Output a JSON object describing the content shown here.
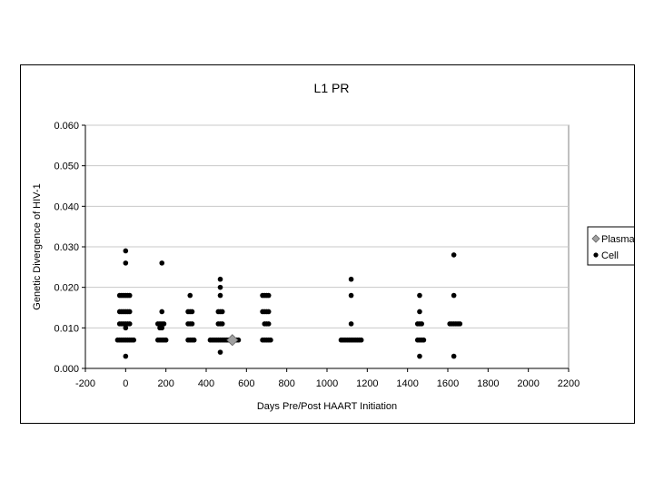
{
  "chart_data": {
    "type": "scatter",
    "title": "L1  PR",
    "xlabel": "Days   Pre/Post   HAART   Initiation",
    "ylabel": "Genetic   Divergence   of   HIV-1",
    "xlim": [
      -200,
      2200
    ],
    "ylim": [
      0.0,
      0.06
    ],
    "x_ticks": [
      -200,
      0,
      200,
      400,
      600,
      800,
      1000,
      1200,
      1400,
      1600,
      1800,
      2000,
      2200
    ],
    "y_ticks": [
      0.0,
      0.01,
      0.02,
      0.03,
      0.04,
      0.05,
      0.06
    ],
    "y_tick_labels": [
      "0.000",
      "0.010",
      "0.020",
      "0.030",
      "0.040",
      "0.050",
      "0.060"
    ],
    "grid": "horizontal",
    "legend_position": "right",
    "series": [
      {
        "name": "Plasma",
        "marker": "diamond",
        "color": "#a0a0a0",
        "points": [
          [
            530,
            0.007
          ]
        ]
      },
      {
        "name": "Cell",
        "marker": "circle",
        "color": "#000000",
        "points": [
          [
            -40,
            0.007
          ],
          [
            -30,
            0.007
          ],
          [
            -20,
            0.007
          ],
          [
            -10,
            0.007
          ],
          [
            0,
            0.007
          ],
          [
            10,
            0.007
          ],
          [
            20,
            0.007
          ],
          [
            30,
            0.007
          ],
          [
            40,
            0.007
          ],
          [
            -30,
            0.011
          ],
          [
            -20,
            0.011
          ],
          [
            -10,
            0.011
          ],
          [
            0,
            0.011
          ],
          [
            10,
            0.011
          ],
          [
            20,
            0.011
          ],
          [
            -30,
            0.014
          ],
          [
            -20,
            0.014
          ],
          [
            -10,
            0.014
          ],
          [
            0,
            0.014
          ],
          [
            10,
            0.014
          ],
          [
            20,
            0.014
          ],
          [
            -30,
            0.018
          ],
          [
            -20,
            0.018
          ],
          [
            -10,
            0.018
          ],
          [
            0,
            0.018
          ],
          [
            10,
            0.018
          ],
          [
            20,
            0.018
          ],
          [
            0,
            0.01
          ],
          [
            0,
            0.026
          ],
          [
            0,
            0.029
          ],
          [
            0,
            0.003
          ],
          [
            160,
            0.007
          ],
          [
            170,
            0.007
          ],
          [
            180,
            0.007
          ],
          [
            190,
            0.007
          ],
          [
            200,
            0.007
          ],
          [
            160,
            0.011
          ],
          [
            170,
            0.011
          ],
          [
            180,
            0.011
          ],
          [
            190,
            0.011
          ],
          [
            170,
            0.01
          ],
          [
            180,
            0.01
          ],
          [
            180,
            0.014
          ],
          [
            180,
            0.026
          ],
          [
            310,
            0.007
          ],
          [
            320,
            0.007
          ],
          [
            330,
            0.007
          ],
          [
            340,
            0.007
          ],
          [
            310,
            0.011
          ],
          [
            320,
            0.011
          ],
          [
            330,
            0.011
          ],
          [
            310,
            0.014
          ],
          [
            320,
            0.014
          ],
          [
            330,
            0.014
          ],
          [
            320,
            0.018
          ],
          [
            420,
            0.007
          ],
          [
            430,
            0.007
          ],
          [
            440,
            0.007
          ],
          [
            450,
            0.007
          ],
          [
            460,
            0.007
          ],
          [
            470,
            0.007
          ],
          [
            480,
            0.007
          ],
          [
            490,
            0.007
          ],
          [
            500,
            0.007
          ],
          [
            510,
            0.007
          ],
          [
            520,
            0.007
          ],
          [
            540,
            0.007
          ],
          [
            550,
            0.007
          ],
          [
            560,
            0.007
          ],
          [
            460,
            0.011
          ],
          [
            470,
            0.011
          ],
          [
            480,
            0.011
          ],
          [
            460,
            0.014
          ],
          [
            470,
            0.014
          ],
          [
            480,
            0.014
          ],
          [
            470,
            0.018
          ],
          [
            470,
            0.02
          ],
          [
            470,
            0.022
          ],
          [
            470,
            0.004
          ],
          [
            680,
            0.007
          ],
          [
            690,
            0.007
          ],
          [
            700,
            0.007
          ],
          [
            710,
            0.007
          ],
          [
            720,
            0.007
          ],
          [
            690,
            0.011
          ],
          [
            700,
            0.011
          ],
          [
            710,
            0.011
          ],
          [
            680,
            0.014
          ],
          [
            690,
            0.014
          ],
          [
            700,
            0.014
          ],
          [
            710,
            0.014
          ],
          [
            680,
            0.018
          ],
          [
            690,
            0.018
          ],
          [
            700,
            0.018
          ],
          [
            710,
            0.018
          ],
          [
            1070,
            0.007
          ],
          [
            1080,
            0.007
          ],
          [
            1090,
            0.007
          ],
          [
            1100,
            0.007
          ],
          [
            1110,
            0.007
          ],
          [
            1120,
            0.007
          ],
          [
            1130,
            0.007
          ],
          [
            1140,
            0.007
          ],
          [
            1150,
            0.007
          ],
          [
            1160,
            0.007
          ],
          [
            1170,
            0.007
          ],
          [
            1120,
            0.011
          ],
          [
            1120,
            0.018
          ],
          [
            1120,
            0.022
          ],
          [
            1450,
            0.007
          ],
          [
            1460,
            0.007
          ],
          [
            1470,
            0.007
          ],
          [
            1480,
            0.007
          ],
          [
            1450,
            0.011
          ],
          [
            1460,
            0.011
          ],
          [
            1470,
            0.011
          ],
          [
            1460,
            0.014
          ],
          [
            1460,
            0.018
          ],
          [
            1460,
            0.003
          ],
          [
            1610,
            0.011
          ],
          [
            1620,
            0.011
          ],
          [
            1630,
            0.011
          ],
          [
            1640,
            0.011
          ],
          [
            1650,
            0.011
          ],
          [
            1660,
            0.011
          ],
          [
            1630,
            0.018
          ],
          [
            1630,
            0.028
          ],
          [
            1630,
            0.003
          ]
        ]
      }
    ]
  }
}
